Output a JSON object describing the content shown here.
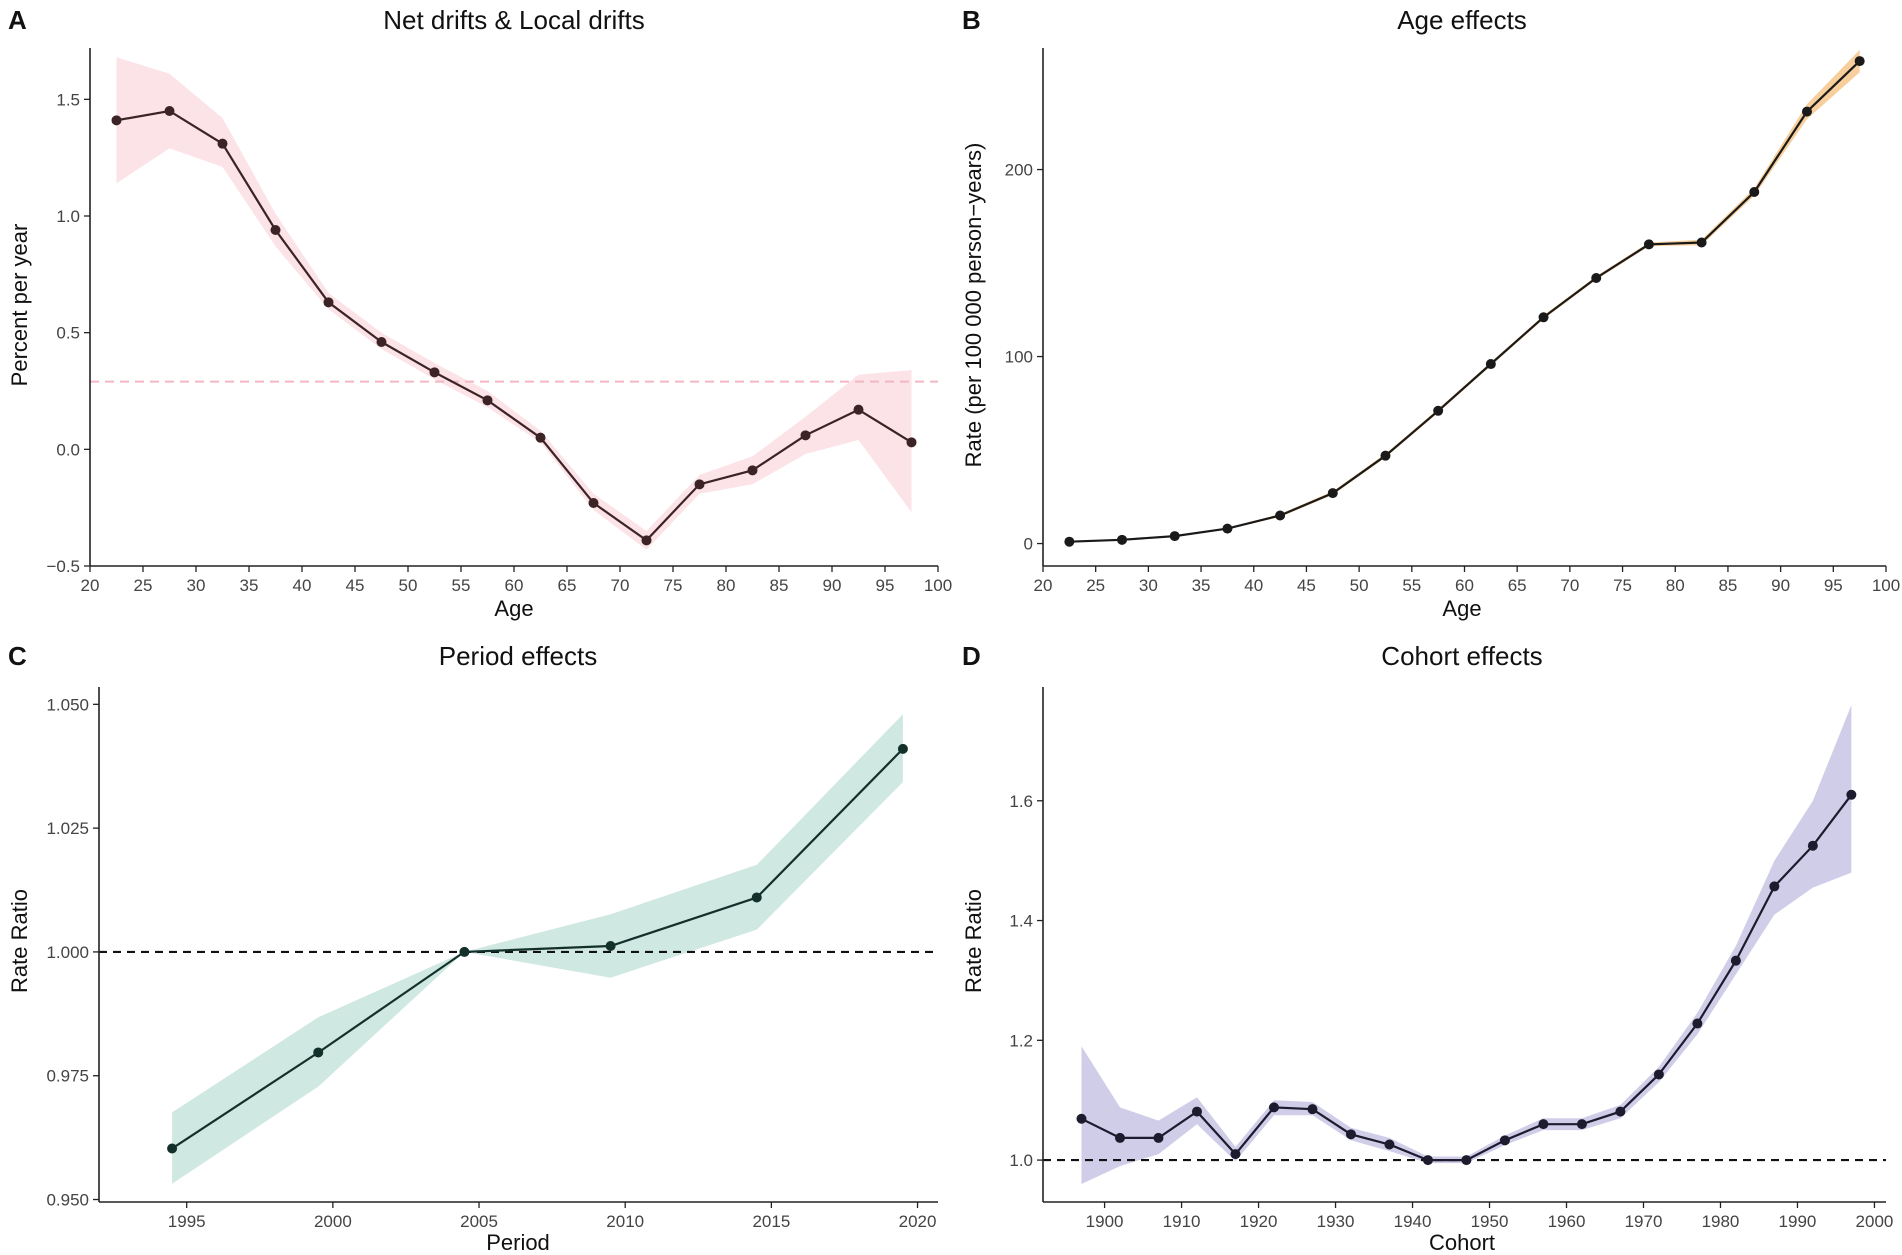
{
  "chart_data": [
    {
      "id": "A",
      "type": "line",
      "panel_label": "A",
      "title": "Net drifts & Local drifts",
      "xlabel": "Age",
      "ylabel": "Percent per year",
      "xlim": [
        20,
        100
      ],
      "ylim": [
        -0.5,
        1.72
      ],
      "xticks": [
        20,
        25,
        30,
        35,
        40,
        45,
        50,
        55,
        60,
        65,
        70,
        75,
        80,
        85,
        90,
        95,
        100
      ],
      "yticks": [
        -0.5,
        0,
        0.5,
        1,
        1.5
      ],
      "ytick_labels": [
        "−0.5",
        "0.0",
        "0.5",
        "1.0",
        "1.5"
      ],
      "line_color": "#3b2326",
      "band_color": "#fbe3e7",
      "reference": {
        "value": 0.29,
        "style": "dashed",
        "color": "#f2b6c4"
      },
      "x": [
        22.5,
        27.5,
        32.5,
        37.5,
        42.5,
        47.5,
        52.5,
        57.5,
        62.5,
        67.5,
        72.5,
        77.5,
        82.5,
        87.5,
        92.5,
        97.5
      ],
      "values": [
        1.41,
        1.45,
        1.31,
        0.94,
        0.63,
        0.46,
        0.33,
        0.21,
        0.05,
        -0.23,
        -0.39,
        -0.15,
        -0.09,
        0.06,
        0.17,
        0.03
      ],
      "lower": [
        1.14,
        1.29,
        1.21,
        0.87,
        0.6,
        0.43,
        0.3,
        0.18,
        0.03,
        -0.26,
        -0.43,
        -0.19,
        -0.15,
        -0.02,
        0.04,
        -0.27
      ],
      "upper": [
        1.68,
        1.61,
        1.42,
        1.01,
        0.67,
        0.5,
        0.37,
        0.25,
        0.08,
        -0.19,
        -0.35,
        -0.11,
        -0.03,
        0.14,
        0.32,
        0.34
      ]
    },
    {
      "id": "B",
      "type": "line",
      "panel_label": "B",
      "title": "Age effects",
      "xlabel": "Age",
      "ylabel": "Rate (per 100 000 person−years)",
      "xlim": [
        20,
        100
      ],
      "ylim": [
        -12,
        265
      ],
      "xticks": [
        20,
        25,
        30,
        35,
        40,
        45,
        50,
        55,
        60,
        65,
        70,
        75,
        80,
        85,
        90,
        95,
        100
      ],
      "yticks": [
        0,
        100,
        200
      ],
      "ytick_labels": [
        "0",
        "100",
        "200"
      ],
      "line_color": "#1a1a1a",
      "band_color": "#f7cf9c",
      "x": [
        22.5,
        27.5,
        32.5,
        37.5,
        42.5,
        47.5,
        52.5,
        57.5,
        62.5,
        67.5,
        72.5,
        77.5,
        82.5,
        87.5,
        92.5,
        97.5
      ],
      "values": [
        1,
        2,
        4,
        8,
        15,
        27,
        47,
        71,
        96,
        121,
        142,
        160,
        161,
        188,
        231,
        258
      ],
      "lower": [
        0.5,
        1.5,
        3.5,
        7.5,
        14.2,
        26,
        46,
        70,
        95,
        120,
        141,
        159,
        159.5,
        186,
        227,
        252
      ],
      "upper": [
        1.5,
        2.5,
        4.5,
        8.5,
        15.8,
        28,
        48,
        72,
        97,
        122,
        143,
        161,
        162.5,
        190,
        235,
        264
      ]
    },
    {
      "id": "C",
      "type": "line",
      "panel_label": "C",
      "title": "Period effects",
      "xlabel": "Period",
      "ylabel": "Rate Ratio",
      "xlim": [
        1992,
        2020.7
      ],
      "ylim": [
        0.9495,
        1.0535
      ],
      "xticks": [
        1995,
        2000,
        2005,
        2010,
        2015,
        2020
      ],
      "yticks": [
        0.95,
        0.975,
        1.0,
        1.025,
        1.05
      ],
      "ytick_labels": [
        "0.950",
        "0.975",
        "1.000",
        "1.025",
        "1.050"
      ],
      "line_color": "#13302b",
      "band_color": "#cfe8e1",
      "reference": {
        "value": 1.0,
        "style": "dashed",
        "color": "#111111"
      },
      "x": [
        1994.5,
        1999.5,
        2004.5,
        2009.5,
        2014.5,
        2019.5
      ],
      "values": [
        0.9603,
        0.9797,
        1.0,
        1.0012,
        1.011,
        1.041
      ],
      "lower": [
        0.9532,
        0.9728,
        1.0,
        0.9948,
        1.0045,
        1.0343
      ],
      "upper": [
        0.9676,
        0.9868,
        1.0,
        1.0076,
        1.0176,
        1.048
      ]
    },
    {
      "id": "D",
      "type": "line",
      "panel_label": "D",
      "title": "Cohort effects",
      "xlabel": "Cohort",
      "ylabel": "Rate Ratio",
      "xlim": [
        1892,
        2001.5
      ],
      "ylim": [
        0.93,
        1.79
      ],
      "xticks": [
        1900,
        1910,
        1920,
        1930,
        1940,
        1950,
        1960,
        1970,
        1980,
        1990,
        2000
      ],
      "yticks": [
        1.0,
        1.2,
        1.4,
        1.6
      ],
      "ytick_labels": [
        "1.0",
        "1.2",
        "1.4",
        "1.6"
      ],
      "line_color": "#1d1b2e",
      "band_color": "#d0cde8",
      "reference": {
        "value": 1.0,
        "style": "dashed",
        "color": "#111111"
      },
      "x": [
        1897,
        1902,
        1907,
        1912,
        1917,
        1922,
        1927,
        1932,
        1937,
        1942,
        1947,
        1952,
        1957,
        1962,
        1967,
        1972,
        1977,
        1982,
        1987,
        1992,
        1997
      ],
      "values": [
        1.069,
        1.037,
        1.037,
        1.081,
        1.01,
        1.088,
        1.085,
        1.043,
        1.026,
        1.0,
        1.0,
        1.033,
        1.06,
        1.06,
        1.081,
        1.143,
        1.228,
        1.333,
        1.457,
        1.525,
        1.61
      ],
      "lower": [
        0.96,
        0.99,
        1.01,
        1.06,
        0.998,
        1.075,
        1.075,
        1.033,
        1.015,
        0.995,
        0.995,
        1.025,
        1.05,
        1.05,
        1.07,
        1.13,
        1.21,
        1.31,
        1.41,
        1.455,
        1.48
      ],
      "upper": [
        1.19,
        1.088,
        1.066,
        1.105,
        1.022,
        1.1,
        1.097,
        1.054,
        1.037,
        1.006,
        1.006,
        1.041,
        1.07,
        1.07,
        1.092,
        1.156,
        1.246,
        1.358,
        1.5,
        1.6,
        1.76
      ]
    }
  ]
}
